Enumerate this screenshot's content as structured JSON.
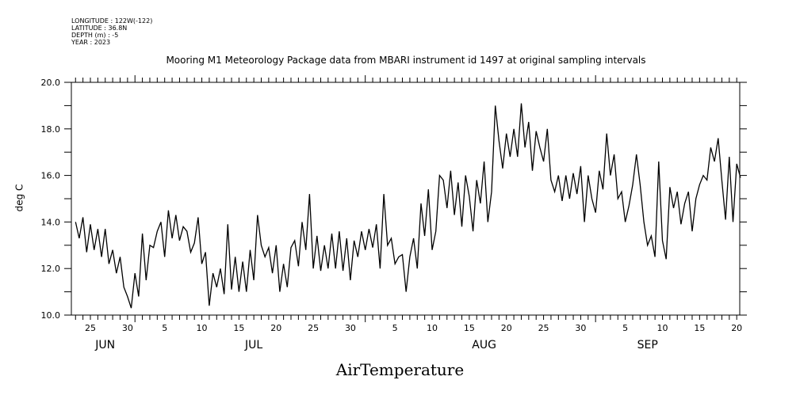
{
  "header": {
    "longitude": "LONGITUDE : 122W(-122)",
    "latitude": "LATITUDE : 36.8N",
    "depth": "DEPTH (m) : -5",
    "year": "YEAR : 2023"
  },
  "chart_data": {
    "type": "line",
    "title": "Mooring M1 Meteorology Package data from MBARI instrument id 1497 at original sampling intervals",
    "xlabel": "AirTemperature",
    "ylabel": "deg C",
    "ylim": [
      10.0,
      20.0
    ],
    "yticks": [
      "10.0",
      "12.0",
      "14.0",
      "16.0",
      "18.0",
      "20.0"
    ],
    "xlim": [
      "2023-06-22.4",
      "2023-09-21.4"
    ],
    "x_start": "2023-06-23",
    "x_step_days": 0.5,
    "xtick_labels": [
      {
        "month": 6,
        "day": 25,
        "label": "25"
      },
      {
        "month": 6,
        "day": 30,
        "label": "30"
      },
      {
        "month": 7,
        "day": 5,
        "label": "5"
      },
      {
        "month": 7,
        "day": 10,
        "label": "10"
      },
      {
        "month": 7,
        "day": 15,
        "label": "15"
      },
      {
        "month": 7,
        "day": 20,
        "label": "20"
      },
      {
        "month": 7,
        "day": 25,
        "label": "25"
      },
      {
        "month": 7,
        "day": 30,
        "label": "30"
      },
      {
        "month": 8,
        "day": 5,
        "label": "5"
      },
      {
        "month": 8,
        "day": 10,
        "label": "10"
      },
      {
        "month": 8,
        "day": 15,
        "label": "15"
      },
      {
        "month": 8,
        "day": 20,
        "label": "20"
      },
      {
        "month": 8,
        "day": 25,
        "label": "25"
      },
      {
        "month": 8,
        "day": 30,
        "label": "30"
      },
      {
        "month": 9,
        "day": 5,
        "label": "5"
      },
      {
        "month": 9,
        "day": 10,
        "label": "10"
      },
      {
        "month": 9,
        "day": 15,
        "label": "15"
      },
      {
        "month": 9,
        "day": 20,
        "label": "20"
      }
    ],
    "month_labels": [
      {
        "month": 6,
        "day": 27,
        "label": "JUN"
      },
      {
        "month": 7,
        "day": 17,
        "label": "JUL"
      },
      {
        "month": 8,
        "day": 17,
        "label": "AUG"
      },
      {
        "month": 9,
        "day": 8,
        "label": "SEP"
      }
    ],
    "grid": false,
    "series": [
      {
        "name": "AirTemperature",
        "values": [
          14.0,
          13.3,
          14.2,
          12.7,
          13.9,
          12.8,
          13.7,
          12.5,
          13.7,
          12.2,
          12.8,
          11.8,
          12.5,
          11.2,
          10.8,
          10.3,
          11.8,
          10.8,
          13.5,
          11.5,
          13.0,
          12.9,
          13.6,
          14.0,
          12.5,
          14.5,
          13.3,
          14.3,
          13.2,
          13.8,
          13.6,
          12.7,
          13.1,
          14.2,
          12.2,
          12.7,
          10.4,
          11.8,
          11.2,
          12.0,
          10.9,
          13.9,
          11.1,
          12.5,
          11.0,
          12.3,
          11.0,
          12.8,
          11.5,
          14.3,
          13.0,
          12.5,
          12.9,
          11.8,
          13.0,
          11.0,
          12.2,
          11.2,
          12.9,
          13.2,
          12.1,
          14.0,
          12.8,
          15.2,
          12.0,
          13.4,
          11.9,
          13.0,
          12.0,
          13.5,
          12.0,
          13.6,
          11.9,
          13.3,
          11.5,
          13.2,
          12.5,
          13.6,
          12.8,
          13.7,
          12.9,
          13.9,
          12.0,
          15.2,
          13.0,
          13.3,
          12.2,
          12.5,
          12.6,
          11.0,
          12.5,
          13.3,
          12.0,
          14.8,
          13.4,
          15.4,
          12.8,
          13.6,
          16.0,
          15.8,
          14.6,
          16.2,
          14.3,
          15.7,
          13.8,
          16.0,
          15.1,
          13.6,
          15.8,
          14.8,
          16.6,
          14.0,
          15.3,
          19.0,
          17.5,
          16.3,
          17.8,
          16.8,
          18.0,
          16.8,
          19.1,
          17.2,
          18.3,
          16.2,
          17.9,
          17.2,
          16.6,
          18.0,
          15.8,
          15.3,
          16.0,
          14.9,
          16.0,
          15.0,
          16.1,
          15.2,
          16.4,
          14.0,
          16.0,
          15.0,
          14.4,
          16.2,
          15.4,
          17.8,
          16.0,
          16.9,
          15.0,
          15.3,
          14.0,
          14.7,
          15.6,
          16.9,
          15.6,
          14.0,
          13.0,
          13.4,
          12.5,
          16.6,
          13.2,
          12.4,
          15.5,
          14.6,
          15.3,
          13.9,
          14.8,
          15.3,
          13.6,
          15.0,
          15.6,
          16.0,
          15.8,
          17.2,
          16.6,
          17.6,
          15.8,
          14.1,
          16.8,
          14.0,
          16.5,
          15.9
        ]
      }
    ]
  }
}
